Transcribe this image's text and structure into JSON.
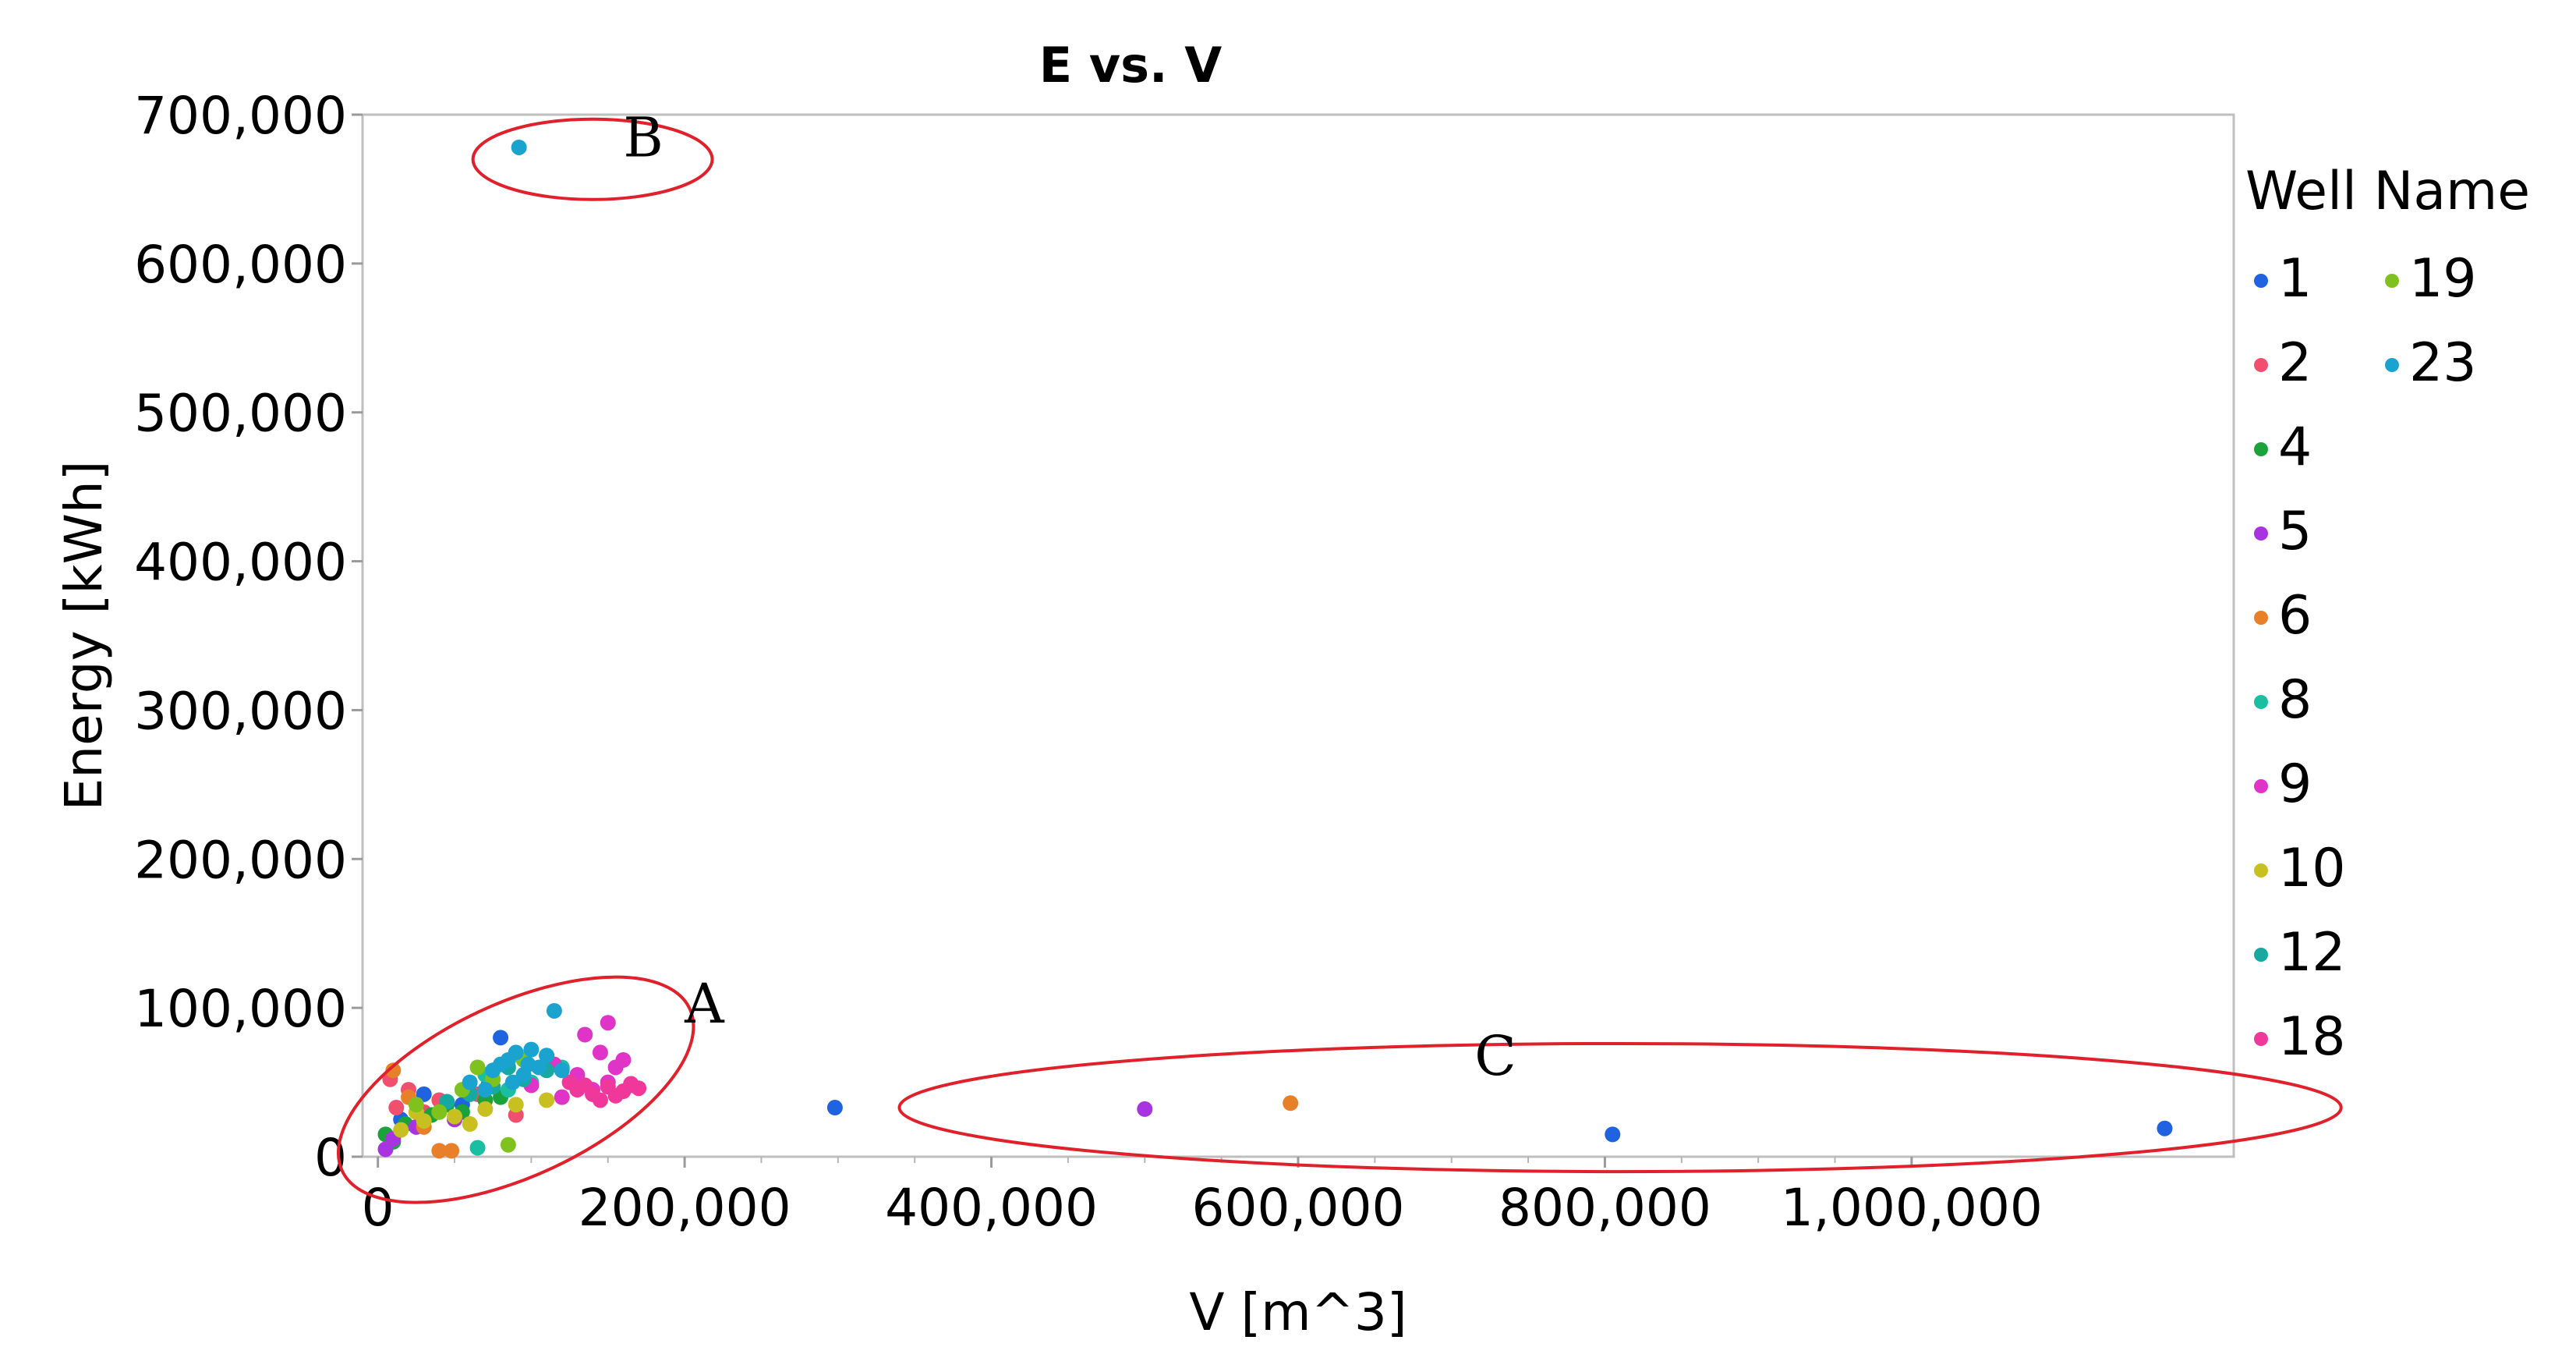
{
  "chart_data": {
    "type": "scatter",
    "title": "E vs. V",
    "xlabel": "V [m^3]",
    "ylabel": "Energy [kWh]",
    "xlim": [
      -10000,
      1210000
    ],
    "ylim": [
      0,
      700000
    ],
    "x_ticks": [
      0,
      200000,
      400000,
      600000,
      800000,
      1000000
    ],
    "x_tick_labels": [
      "0",
      "200,000",
      "400,000",
      "600,000",
      "800,000",
      "1,000,000"
    ],
    "y_ticks": [
      0,
      100000,
      200000,
      300000,
      400000,
      500000,
      600000,
      700000
    ],
    "y_tick_labels": [
      "0",
      "100,000",
      "200,000",
      "300,000",
      "400,000",
      "500,000",
      "600,000",
      "700,000"
    ],
    "grid": false,
    "legend": {
      "title": "Well Name",
      "placement": "right",
      "entries": [
        {
          "name": "1",
          "color": "#1f63e0"
        },
        {
          "name": "2",
          "color": "#f0506e"
        },
        {
          "name": "4",
          "color": "#1aa33a"
        },
        {
          "name": "5",
          "color": "#a833e0"
        },
        {
          "name": "6",
          "color": "#e8802a"
        },
        {
          "name": "8",
          "color": "#19bfa0"
        },
        {
          "name": "9",
          "color": "#e033c8"
        },
        {
          "name": "10",
          "color": "#c8bf20"
        },
        {
          "name": "12",
          "color": "#17a8a0"
        },
        {
          "name": "18",
          "color": "#f0379a"
        },
        {
          "name": "19",
          "color": "#7fc21e"
        },
        {
          "name": "23",
          "color": "#1ba3cf"
        }
      ]
    },
    "series": [
      {
        "name": "1",
        "points": [
          [
            298000,
            33000
          ],
          [
            805000,
            15000
          ],
          [
            1165000,
            19000
          ],
          [
            80000,
            80000
          ],
          [
            30000,
            42000
          ],
          [
            55000,
            35000
          ],
          [
            15000,
            25000
          ],
          [
            72000,
            48000
          ]
        ]
      },
      {
        "name": "2",
        "points": [
          [
            8000,
            52000
          ],
          [
            20000,
            45000
          ],
          [
            40000,
            38000
          ],
          [
            65000,
            42000
          ],
          [
            12000,
            33000
          ],
          [
            90000,
            28000
          ],
          [
            30000,
            30000
          ]
        ]
      },
      {
        "name": "4",
        "points": [
          [
            5000,
            15000
          ],
          [
            18000,
            22000
          ],
          [
            35000,
            28000
          ],
          [
            55000,
            30000
          ],
          [
            80000,
            40000
          ],
          [
            10000,
            10000
          ],
          [
            45000,
            35000
          ],
          [
            70000,
            38000
          ]
        ]
      },
      {
        "name": "5",
        "points": [
          [
            500000,
            32000
          ],
          [
            10000,
            12000
          ],
          [
            25000,
            20000
          ],
          [
            50000,
            25000
          ],
          [
            5000,
            5000
          ]
        ]
      },
      {
        "name": "6",
        "points": [
          [
            595000,
            36000
          ],
          [
            10000,
            58000
          ],
          [
            40000,
            4000
          ],
          [
            48000,
            4000
          ],
          [
            20000,
            40000
          ],
          [
            30000,
            20000
          ]
        ]
      },
      {
        "name": "8",
        "points": [
          [
            65000,
            6000
          ],
          [
            100000,
            50000
          ],
          [
            120000,
            60000
          ],
          [
            85000,
            45000
          ],
          [
            70000,
            55000
          ]
        ]
      },
      {
        "name": "9",
        "points": [
          [
            100000,
            48000
          ],
          [
            120000,
            40000
          ],
          [
            140000,
            45000
          ],
          [
            150000,
            50000
          ],
          [
            165000,
            48000
          ],
          [
            130000,
            55000
          ],
          [
            155000,
            60000
          ],
          [
            160000,
            65000
          ],
          [
            145000,
            70000
          ],
          [
            135000,
            82000
          ],
          [
            150000,
            90000
          ],
          [
            115000,
            62000
          ]
        ]
      },
      {
        "name": "10",
        "points": [
          [
            15000,
            18000
          ],
          [
            30000,
            24000
          ],
          [
            50000,
            27000
          ],
          [
            70000,
            32000
          ],
          [
            90000,
            35000
          ],
          [
            110000,
            38000
          ],
          [
            60000,
            22000
          ],
          [
            25000,
            30000
          ]
        ]
      },
      {
        "name": "12",
        "points": [
          [
            60000,
            42000
          ],
          [
            75000,
            47000
          ],
          [
            95000,
            52000
          ],
          [
            110000,
            58000
          ],
          [
            45000,
            37000
          ],
          [
            85000,
            60000
          ]
        ]
      },
      {
        "name": "18",
        "points": [
          [
            130000,
            45000
          ],
          [
            140000,
            42000
          ],
          [
            150000,
            47000
          ],
          [
            160000,
            44000
          ],
          [
            170000,
            46000
          ],
          [
            125000,
            50000
          ],
          [
            145000,
            38000
          ],
          [
            165000,
            49000
          ],
          [
            155000,
            41000
          ],
          [
            135000,
            48000
          ]
        ]
      },
      {
        "name": "19",
        "points": [
          [
            85000,
            8000
          ],
          [
            25000,
            35000
          ],
          [
            55000,
            45000
          ],
          [
            75000,
            52000
          ],
          [
            95000,
            65000
          ],
          [
            40000,
            30000
          ],
          [
            65000,
            60000
          ]
        ]
      },
      {
        "name": "23",
        "points": [
          [
            92000,
            678000
          ],
          [
            115000,
            98000
          ],
          [
            100000,
            72000
          ],
          [
            85000,
            65000
          ],
          [
            105000,
            60000
          ],
          [
            95000,
            55000
          ],
          [
            80000,
            62000
          ],
          [
            110000,
            68000
          ],
          [
            120000,
            58000
          ],
          [
            60000,
            50000
          ],
          [
            75000,
            58000
          ],
          [
            90000,
            70000
          ],
          [
            98000,
            62000
          ],
          [
            88000,
            50000
          ],
          [
            70000,
            45000
          ]
        ]
      }
    ],
    "annotations": [
      {
        "label": "A",
        "cx": 90000,
        "cy": 45000,
        "rx": 125000,
        "ry": 58000,
        "label_x": 200000,
        "label_y": 90000
      },
      {
        "label": "B",
        "cx": 140000,
        "cy": 670000,
        "rx": 78000,
        "ry": 27000,
        "label_x": 160000,
        "label_y": 672000
      },
      {
        "label": "C",
        "cx": 810000,
        "cy": 33000,
        "rx": 470000,
        "ry": 43000,
        "label_x": 715000,
        "label_y": 55000
      }
    ]
  }
}
